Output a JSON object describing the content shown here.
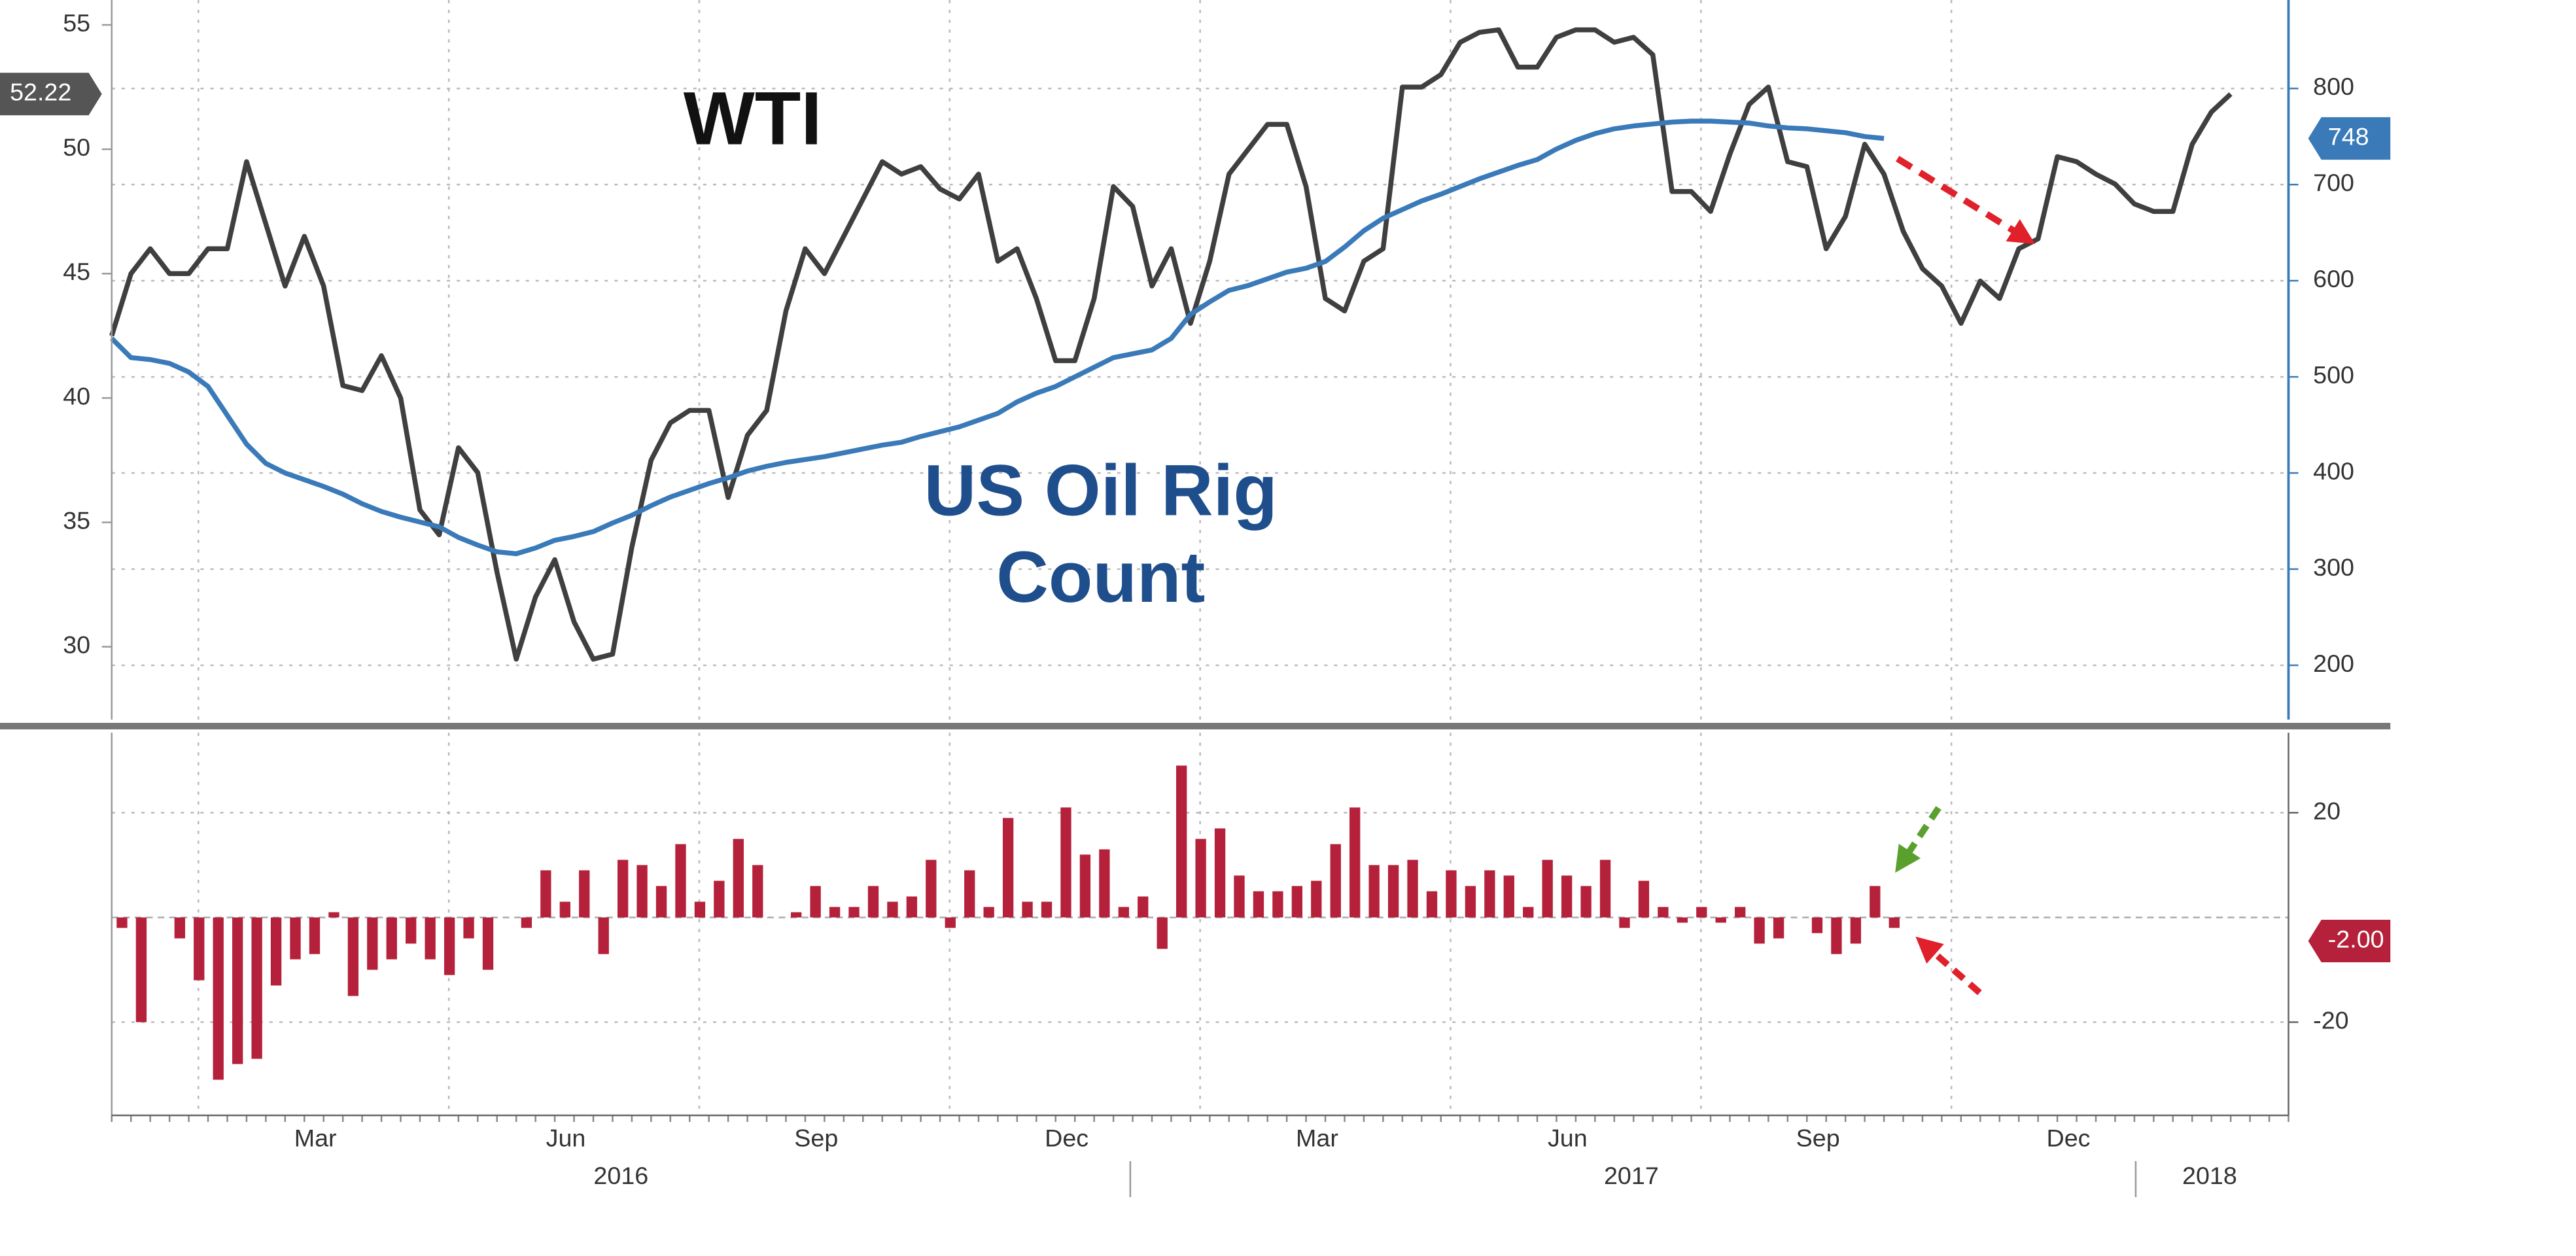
{
  "chart_data": [
    {
      "type": "line",
      "series": [
        {
          "name": "WTI",
          "color": "#3f3f3f",
          "axis": "y",
          "last_label": "52.22",
          "values": [
            42.5,
            45,
            46,
            45,
            45,
            46,
            46,
            49.5,
            47,
            44.5,
            46.5,
            44.5,
            40.5,
            40.3,
            41.7,
            40,
            35.5,
            34.5,
            38,
            37,
            33,
            29.5,
            32,
            33.5,
            31,
            29.5,
            29.7,
            34,
            37.5,
            39,
            39.5,
            39.5,
            36,
            38.5,
            39.5,
            43.5,
            46,
            45,
            46.5,
            48,
            49.5,
            49,
            49.3,
            48.4,
            48,
            49,
            45.5,
            46,
            44,
            41.5,
            41.5,
            44,
            48.5,
            47.7,
            44.5,
            46,
            43,
            45.5,
            49,
            50,
            51,
            51,
            48.5,
            44,
            43.5,
            45.5,
            46,
            52.5,
            52.5,
            53,
            54.3,
            54.7,
            54.8,
            53.3,
            53.3,
            54.5,
            54.8,
            54.8,
            54.3,
            54.5,
            53.8,
            48.3,
            48.3,
            47.5,
            49.8,
            51.8,
            52.5,
            49.5,
            49.3,
            46,
            47.3,
            50.2,
            49,
            46.7,
            45.2,
            44.5,
            43,
            44.7,
            44,
            46,
            46.4,
            49.7,
            49.5,
            49,
            48.6,
            47.8,
            47.5,
            47.5,
            50.2,
            51.5,
            52.22,
            null,
            null,
            null
          ]
        },
        {
          "name": "US Oil Rig Count",
          "color": "#3a7ab8",
          "axis": "y2",
          "last_label": "748",
          "values": [
            540,
            520,
            518,
            514,
            505,
            490,
            460,
            430,
            410,
            400,
            393,
            386,
            378,
            368,
            360,
            354,
            349,
            344,
            333,
            325,
            318,
            316,
            322,
            330,
            334,
            339,
            348,
            356,
            366,
            375,
            382,
            389,
            395,
            402,
            407,
            411,
            414,
            417,
            421,
            425,
            429,
            432,
            438,
            443,
            448,
            455,
            462,
            474,
            483,
            490,
            500,
            510,
            520,
            524,
            528,
            540,
            565,
            578,
            590,
            595,
            602,
            609,
            613,
            620,
            635,
            652,
            665,
            674,
            683,
            690,
            698,
            706,
            713,
            720,
            726,
            737,
            746,
            753,
            758,
            761,
            763,
            765,
            766,
            766,
            765,
            764,
            761,
            759,
            758,
            756,
            754,
            750,
            748,
            null,
            null,
            null,
            null,
            null,
            null,
            null,
            null,
            null,
            null,
            null,
            null,
            null,
            null,
            null,
            null,
            null,
            null,
            null,
            null,
            null
          ]
        }
      ],
      "ylim": [
        27.4,
        56
      ],
      "yticks": [
        30,
        35,
        40,
        45,
        50,
        55
      ],
      "y2lim": [
        152,
        892
      ],
      "y2ticks": [
        200,
        300,
        400,
        500,
        600,
        700,
        800
      ],
      "grid": true
    },
    {
      "type": "bar",
      "color": "#b5213a",
      "last_label": "-2.00",
      "categories": [
        null,
        null,
        null,
        null,
        null,
        null,
        null,
        null,
        null,
        null,
        null,
        "Mar",
        null,
        null,
        null,
        null,
        null,
        null,
        null,
        null,
        null,
        null,
        null,
        null,
        "Jun",
        null,
        null,
        null,
        null,
        null,
        null,
        null,
        null,
        null,
        null,
        null,
        null,
        "Sep",
        null,
        null,
        null,
        null,
        null,
        null,
        null,
        null,
        null,
        null,
        null,
        null,
        "Dec",
        null,
        null,
        null,
        null,
        null,
        null,
        null,
        null,
        null,
        null,
        null,
        null,
        "Mar",
        null,
        null,
        null,
        null,
        null,
        null,
        null,
        null,
        null,
        null,
        null,
        null,
        "Jun",
        null,
        null,
        null,
        null,
        null,
        null,
        null,
        null,
        null,
        null,
        null,
        null,
        "Sep",
        null,
        null,
        null,
        null,
        null,
        null,
        null,
        null,
        null,
        null,
        null,
        null,
        "Dec",
        null,
        null,
        null,
        null,
        null,
        null,
        null,
        null,
        null,
        null,
        null
      ],
      "years": [
        "2016",
        "2017",
        "2018"
      ],
      "values": [
        -2,
        -20,
        0,
        -4,
        -12,
        -31,
        -28,
        -27,
        -13,
        -8,
        -7,
        1,
        -15,
        -10,
        -8,
        -5,
        -8,
        -11,
        -4,
        -10,
        0,
        -2,
        9,
        3,
        9,
        -7,
        11,
        10,
        6,
        14,
        3,
        7,
        15,
        10,
        0,
        1,
        6,
        2,
        2,
        6,
        3,
        4,
        11,
        -2,
        9,
        2,
        19,
        3,
        3,
        21,
        12,
        13,
        2,
        4,
        -6,
        29,
        15,
        17,
        8,
        5,
        5,
        6,
        7,
        14,
        21,
        10,
        10,
        11,
        5,
        9,
        6,
        9,
        8,
        2,
        11,
        8,
        6,
        11,
        -2,
        7,
        2,
        -1,
        2,
        -1,
        2,
        -5,
        -4,
        0,
        -3,
        -7,
        -5,
        6,
        -2,
        null,
        null,
        null,
        null,
        null,
        null,
        null,
        null,
        null,
        null,
        null,
        null,
        null,
        null,
        null,
        null,
        null,
        null,
        null,
        null,
        null
      ],
      "ylim": [
        -37.8,
        35.6
      ],
      "yticks": [
        -20,
        20
      ],
      "grid": true
    }
  ]
}
